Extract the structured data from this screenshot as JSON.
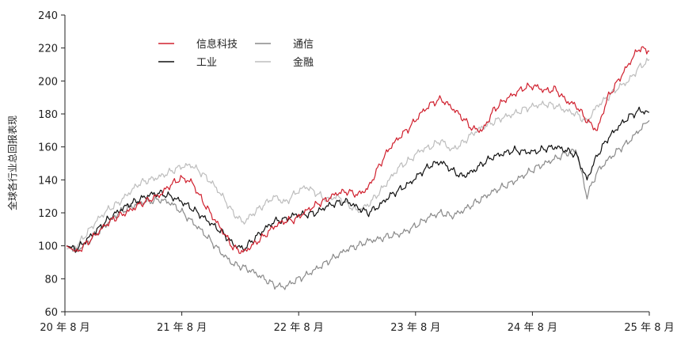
{
  "chart_data": {
    "type": "line",
    "ylabel": "全球各行业总回报表现",
    "ylim": [
      60,
      240
    ],
    "yticks": [
      60,
      80,
      100,
      120,
      140,
      160,
      180,
      200,
      220,
      240
    ],
    "xticks": [
      "20 年 8 月",
      "21 年 8 月",
      "22 年 8 月",
      "23 年 8 月",
      "24 年 8 月",
      "25 年 8 月"
    ],
    "legend_position": "top-left",
    "series": [
      {
        "name": "信息科技",
        "color": "#d0202e",
        "width": 1.2,
        "values": [
          100,
          96,
          102,
          108,
          114,
          118,
          121,
          125,
          128,
          131,
          137,
          141,
          139,
          128,
          118,
          109,
          99,
          96,
          101,
          106,
          112,
          115,
          116,
          121,
          125,
          128,
          132,
          133,
          131,
          135,
          148,
          159,
          166,
          172,
          180,
          186,
          189,
          184,
          178,
          171,
          170,
          182,
          188,
          192,
          196,
          197,
          194,
          195,
          188,
          185,
          176,
          170,
          190,
          200,
          210,
          220,
          218
        ]
      },
      {
        "name": "工业",
        "color": "#111111",
        "width": 1.2,
        "values": [
          100,
          98,
          104,
          110,
          116,
          121,
          125,
          128,
          131,
          132,
          130,
          127,
          123,
          118,
          113,
          108,
          101,
          98,
          104,
          110,
          115,
          116,
          119,
          119,
          120,
          124,
          126,
          127,
          123,
          120,
          124,
          130,
          134,
          138,
          144,
          149,
          151,
          146,
          142,
          145,
          150,
          154,
          156,
          158,
          157,
          157,
          159,
          160,
          158,
          155,
          140,
          155,
          165,
          172,
          178,
          182,
          181
        ]
      },
      {
        "name": "通信",
        "color": "#8a8a8a",
        "width": 1.2,
        "values": [
          100,
          97,
          102,
          108,
          114,
          120,
          123,
          126,
          127,
          128,
          126,
          121,
          115,
          109,
          102,
          95,
          89,
          87,
          84,
          80,
          76,
          75,
          79,
          82,
          86,
          90,
          94,
          98,
          100,
          103,
          104,
          106,
          107,
          110,
          114,
          118,
          120,
          118,
          121,
          125,
          129,
          133,
          136,
          139,
          143,
          147,
          150,
          153,
          156,
          158,
          130,
          145,
          152,
          158,
          163,
          170,
          176
        ]
      },
      {
        "name": "金融",
        "color": "#bdbdbd",
        "width": 1.2,
        "values": [
          98,
          100,
          108,
          116,
          122,
          126,
          132,
          138,
          140,
          142,
          145,
          148,
          149,
          144,
          138,
          130,
          120,
          114,
          120,
          125,
          130,
          126,
          132,
          136,
          132,
          128,
          130,
          125,
          121,
          125,
          132,
          140,
          148,
          152,
          158,
          160,
          164,
          158,
          162,
          168,
          172,
          175,
          178,
          180,
          183,
          185,
          186,
          185,
          182,
          180,
          175,
          185,
          190,
          196,
          200,
          208,
          213
        ]
      }
    ]
  }
}
